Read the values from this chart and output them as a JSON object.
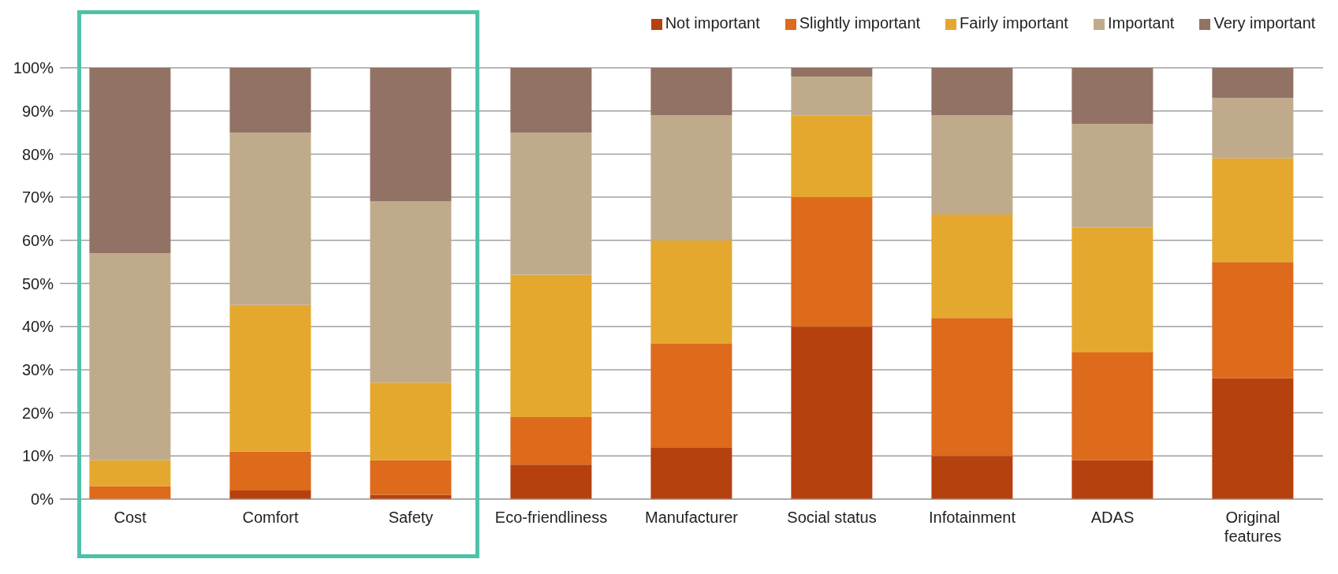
{
  "chart_data": {
    "type": "bar",
    "stacked": true,
    "categories": [
      "Cost",
      "Comfort",
      "Safety",
      "Eco-friendliness",
      "Manufacturer",
      "Social status",
      "Infotainment",
      "ADAS",
      "Original features"
    ],
    "series": [
      {
        "name": "Not important",
        "color": "#b5410f",
        "values": [
          0,
          2,
          1,
          8,
          12,
          40,
          10,
          9,
          28
        ]
      },
      {
        "name": "Slightly important",
        "color": "#de6a1c",
        "values": [
          3,
          9,
          8,
          11,
          24,
          30,
          32,
          25,
          27
        ]
      },
      {
        "name": "Fairly important",
        "color": "#e5a82e",
        "values": [
          6,
          34,
          18,
          33,
          24,
          19,
          24,
          29,
          24
        ]
      },
      {
        "name": "Important",
        "color": "#bfab8c",
        "values": [
          48,
          40,
          42,
          33,
          29,
          9,
          23,
          24,
          14
        ]
      },
      {
        "name": "Very important",
        "color": "#927264",
        "values": [
          43,
          15,
          31,
          15,
          11,
          2,
          11,
          13,
          7
        ]
      }
    ],
    "ylim": [
      0,
      100
    ],
    "yticks": [
      {
        "value": 0,
        "label": "0%"
      },
      {
        "value": 10,
        "label": "10%"
      },
      {
        "value": 20,
        "label": "20%"
      },
      {
        "value": 30,
        "label": "30%"
      },
      {
        "value": 40,
        "label": "40%"
      },
      {
        "value": 50,
        "label": "50%"
      },
      {
        "value": 60,
        "label": "60%"
      },
      {
        "value": 70,
        "label": "70%"
      },
      {
        "value": 80,
        "label": "80%"
      },
      {
        "value": 90,
        "label": "90%"
      },
      {
        "value": 100,
        "label": "100%"
      }
    ],
    "grid": "y",
    "legend": "top"
  }
}
